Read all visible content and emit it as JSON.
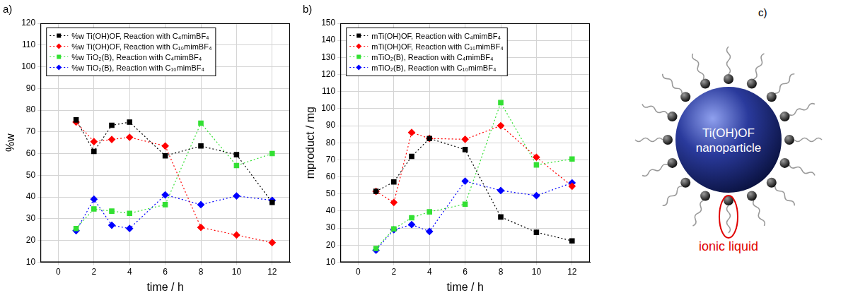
{
  "chart_data": [
    {
      "type": "line",
      "title": "a)",
      "x_label": "time / h",
      "y_label": "%w",
      "x": [
        1,
        2,
        3,
        4,
        6,
        8,
        10,
        12
      ],
      "series": [
        {
          "name": "%w Ti(OH)OF, Reaction with C₄mimBF₄",
          "color": "#000000",
          "marker": "square",
          "line_style": "dotted",
          "values": [
            75.5,
            61,
            73,
            74.5,
            59,
            63.5,
            59.5,
            37.5
          ]
        },
        {
          "name": "%w Ti(OH)OF, Reaction with C₁₀mimBF₄",
          "color": "#ff0000",
          "marker": "diamond",
          "line_style": "dotted",
          "values": [
            74.5,
            65.5,
            66.5,
            67.5,
            63.5,
            26,
            22.5,
            19
          ]
        },
        {
          "name": "%w TiO₂(B), Reaction with C₄mimBF₄",
          "color": "#33e033",
          "marker": "square",
          "line_style": "dotted",
          "values": [
            25.5,
            34.5,
            33.5,
            32.5,
            36.5,
            74,
            54.5,
            60
          ]
        },
        {
          "name": "%w TiO₂(B), Reaction with C₁₀mimBF₄",
          "color": "#0000ff",
          "marker": "diamond",
          "line_style": "dotted",
          "values": [
            24.5,
            39,
            27,
            25.5,
            41,
            36.5,
            40.5,
            38.5
          ]
        }
      ],
      "xlim": [
        -1,
        13
      ],
      "xticks": [
        0,
        2,
        4,
        6,
        8,
        10,
        12
      ],
      "ylim": [
        10,
        120
      ],
      "yticks": [
        10,
        20,
        30,
        40,
        50,
        60,
        70,
        80,
        90,
        100,
        110,
        120
      ],
      "grid": true,
      "legend": "upper left"
    },
    {
      "type": "line",
      "title": "b)",
      "x_label": "time / h",
      "y_label": "mproduct / mg",
      "x": [
        1,
        2,
        3,
        4,
        6,
        8,
        10,
        12
      ],
      "series": [
        {
          "name": "mTi(OH)OF, Reaction with C₄mimBF₄",
          "color": "#000000",
          "marker": "square",
          "line_style": "dotted",
          "values": [
            51.5,
            57,
            72,
            82.5,
            76,
            36.5,
            27.5,
            22.5
          ]
        },
        {
          "name": "mTi(OH)OF, Reaction with C₁₀mimBF₄",
          "color": "#ff0000",
          "marker": "diamond",
          "line_style": "dotted",
          "values": [
            51.5,
            45,
            86,
            82.5,
            82,
            90,
            71.5,
            54.5
          ]
        },
        {
          "name": "mTiO₂(B), Reaction with C₄mimBF₄",
          "color": "#33e033",
          "marker": "square",
          "line_style": "dotted",
          "values": [
            18,
            29.5,
            36,
            39.5,
            44,
            103.5,
            67,
            70.5
          ]
        },
        {
          "name": "mTiO₂(B), Reaction with C₁₀mimBF₄",
          "color": "#0000ff",
          "marker": "diamond",
          "line_style": "dotted",
          "values": [
            17,
            29,
            32,
            28,
            57.5,
            52,
            49,
            56.5
          ]
        }
      ],
      "xlim": [
        -1,
        13
      ],
      "xticks": [
        0,
        2,
        4,
        6,
        8,
        10,
        12
      ],
      "ylim": [
        10,
        150
      ],
      "yticks": [
        10,
        20,
        30,
        40,
        50,
        60,
        70,
        80,
        90,
        100,
        110,
        120,
        130,
        140,
        150
      ],
      "grid": true,
      "legend": "upper left"
    }
  ],
  "diagram": {
    "label": "c)",
    "particle": "Ti(OH)OF nanoparticle",
    "annotation": "ionic liquid"
  }
}
